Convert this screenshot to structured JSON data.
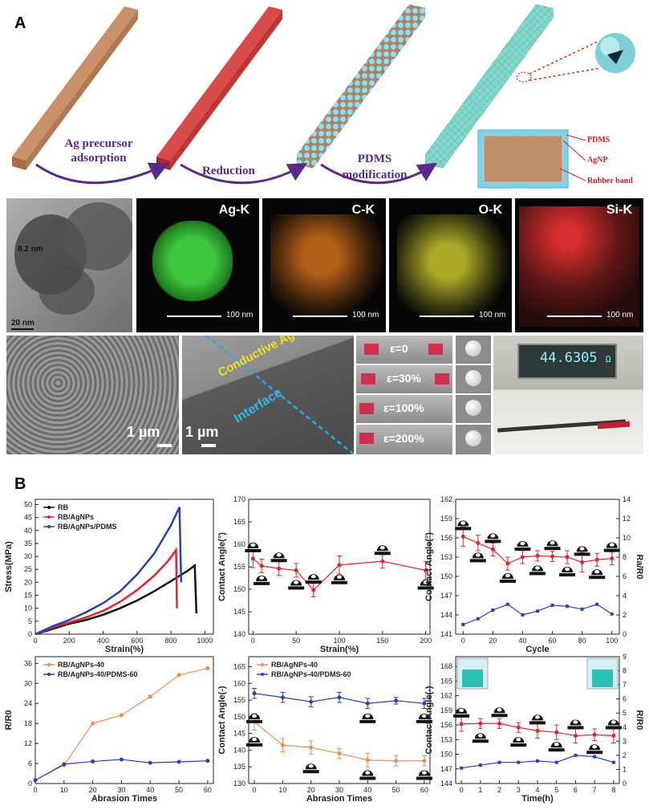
{
  "panel_a": {
    "letter": "A",
    "steps": [
      "Ag precursor adsorption",
      "Reduction",
      "PDMS modification"
    ],
    "layers": [
      "PDMS",
      "AgNP",
      "Rubber band"
    ],
    "tem": {
      "thickness": "8.2 nm",
      "scale": "20 nm"
    },
    "eds": [
      {
        "label": "Ag-K",
        "scale": "100 nm",
        "color": "#3ec43e"
      },
      {
        "label": "C-K",
        "scale": "100 nm",
        "color": "#e0761c"
      },
      {
        "label": "O-K",
        "scale": "100 nm",
        "color": "#d7d430"
      },
      {
        "label": "Si-K",
        "scale": "100 nm",
        "color": "#e23030"
      }
    ],
    "sem": {
      "scale1": "1 µm",
      "scale2": "1 µm",
      "shell": "Conductive Ag Shell",
      "interface": "Interface"
    },
    "strain_labels": [
      "ε=0",
      "ε=30%",
      "ε=100%",
      "ε=200%"
    ],
    "meter": {
      "value": "44.6305",
      "unit": "Ω"
    }
  },
  "panel_b": {
    "letter": "B"
  },
  "chart_data": [
    {
      "type": "line",
      "xlabel": "Strain(%)",
      "ylabel": "Stress(MPa)",
      "xlim": [
        0,
        1050
      ],
      "ylim": [
        0,
        52
      ],
      "xticks": [
        0,
        200,
        400,
        600,
        800,
        1000
      ],
      "yticks": [
        0,
        5,
        10,
        15,
        20,
        25,
        30,
        35,
        40,
        45,
        50
      ],
      "series": [
        {
          "name": "RB",
          "color": "#111111",
          "x": [
            0,
            100,
            200,
            300,
            400,
            500,
            600,
            700,
            800,
            900,
            940,
            950
          ],
          "y": [
            0,
            2,
            4,
            5.5,
            7.5,
            10,
            13,
            16.5,
            20.5,
            24.5,
            26.5,
            8
          ]
        },
        {
          "name": "RB/AgNPs",
          "color": "#e8222a",
          "x": [
            0,
            100,
            200,
            300,
            400,
            500,
            600,
            700,
            780,
            830,
            835
          ],
          "y": [
            0,
            2.5,
            4.5,
            6.5,
            9,
            12.5,
            17,
            22.5,
            28,
            32.5,
            10
          ]
        },
        {
          "name": "RB/AgNPs/PDMS",
          "color": "#2a3fb8",
          "x": [
            0,
            100,
            200,
            300,
            400,
            500,
            600,
            700,
            800,
            850,
            860
          ],
          "y": [
            0,
            3,
            5.5,
            8.5,
            12,
            16.5,
            23,
            31,
            42,
            49,
            20
          ]
        }
      ]
    },
    {
      "type": "line",
      "xlabel": "Strain(%)",
      "ylabel": "Contact Angle(°)",
      "xlim": [
        -5,
        205
      ],
      "ylim": [
        140,
        170
      ],
      "xticks": [
        0,
        50,
        100,
        150,
        200
      ],
      "yticks": [
        140,
        145,
        150,
        155,
        160,
        165,
        170
      ],
      "series": [
        {
          "color": "#e8222a",
          "x": [
            0,
            10,
            30,
            50,
            70,
            100,
            150,
            200
          ],
          "y": [
            156.8,
            155.2,
            154.6,
            154.2,
            149.8,
            155.4,
            156.2,
            154.2
          ],
          "err": [
            2,
            1.5,
            1.5,
            1.5,
            1.5,
            2,
            1.5,
            2
          ]
        }
      ]
    },
    {
      "type": "line",
      "xlabel": "Cycle",
      "ylabel": "Contact Angle(°)",
      "ylabel2": "Ra/R0",
      "xlim": [
        -5,
        105
      ],
      "ylim": [
        141,
        162
      ],
      "y2lim": [
        0,
        14
      ],
      "xticks": [
        0,
        20,
        40,
        60,
        80,
        100
      ],
      "yticks": [
        141,
        144,
        147,
        150,
        153,
        156,
        159,
        162
      ],
      "y2ticks": [
        0,
        2,
        4,
        6,
        8,
        10,
        12,
        14
      ],
      "series": [
        {
          "color": "#e8222a",
          "axis": "left",
          "x": [
            0,
            10,
            20,
            30,
            40,
            50,
            60,
            70,
            80,
            90,
            100
          ],
          "y": [
            156.2,
            155.2,
            154.2,
            152,
            153,
            153.2,
            153.1,
            153,
            152.2,
            152.6,
            152.8
          ],
          "err": [
            1.5,
            1.2,
            1,
            1,
            1,
            0.8,
            0.8,
            1,
            1.5,
            1,
            1
          ]
        },
        {
          "color": "#2a3fb8",
          "axis": "right",
          "x": [
            0,
            10,
            20,
            30,
            40,
            50,
            60,
            70,
            80,
            90,
            100
          ],
          "y": [
            1,
            1.6,
            2.5,
            3.1,
            2,
            2.4,
            3,
            2.9,
            2.6,
            3.1,
            2.1
          ]
        }
      ]
    },
    {
      "type": "line",
      "xlabel": "Abrasion Times",
      "ylabel": "R/R0",
      "xlim": [
        0,
        62
      ],
      "ylim": [
        0,
        38
      ],
      "xticks": [
        0,
        10,
        20,
        30,
        40,
        50,
        60
      ],
      "yticks": [
        0,
        6,
        12,
        18,
        24,
        30,
        36
      ],
      "series": [
        {
          "name": "RB/AgNPs-40",
          "color": "#f28a4a",
          "x": [
            0,
            10,
            20,
            30,
            40,
            50,
            60
          ],
          "y": [
            1,
            5.5,
            18,
            20.5,
            26,
            32.5,
            34.5
          ]
        },
        {
          "name": "RB/AgNPs-40/PDMS-60",
          "color": "#2a3fb8",
          "x": [
            0,
            10,
            20,
            30,
            40,
            50,
            60
          ],
          "y": [
            1,
            5.8,
            6.6,
            7.2,
            6.2,
            6.5,
            6.8
          ]
        }
      ]
    },
    {
      "type": "line",
      "xlabel": "Abrasion Times",
      "ylabel": "Contact Angle(-)",
      "xlim": [
        -2,
        62
      ],
      "ylim": [
        130,
        168
      ],
      "xticks": [
        0,
        10,
        20,
        30,
        40,
        50,
        60
      ],
      "yticks": [
        130,
        135,
        140,
        145,
        150,
        155,
        160,
        165
      ],
      "series": [
        {
          "name": "RB/AgNPs-40",
          "color": "#f28a4a",
          "x": [
            0,
            10,
            20,
            30,
            40,
            50,
            60
          ],
          "y": [
            148.5,
            141.5,
            140.8,
            139,
            137,
            136.8,
            136.8
          ],
          "err": [
            2.5,
            2,
            2,
            1.5,
            2,
            1.5,
            1.5
          ]
        },
        {
          "name": "RB/AgNPs-40/PDMS-60",
          "color": "#2a3fb8",
          "x": [
            0,
            10,
            20,
            30,
            40,
            50,
            60
          ],
          "y": [
            157,
            155.8,
            154.5,
            155.8,
            154,
            154.8,
            154
          ],
          "err": [
            1.5,
            1.5,
            1.5,
            1.5,
            1.5,
            1,
            1.5
          ]
        }
      ]
    },
    {
      "type": "line",
      "xlabel": "Time(h)",
      "ylabel": "Contact Angle(-)",
      "ylabel2": "R/R0",
      "xlim": [
        -0.3,
        8.3
      ],
      "ylim": [
        144,
        170
      ],
      "y2lim": [
        0,
        9
      ],
      "xticks": [
        0,
        1,
        2,
        3,
        4,
        5,
        6,
        7,
        8
      ],
      "yticks": [
        144,
        147,
        150,
        153,
        156,
        159,
        162,
        165,
        168
      ],
      "y2ticks": [
        0,
        1,
        2,
        3,
        4,
        5,
        6,
        7,
        8,
        9
      ],
      "series": [
        {
          "color": "#e8222a",
          "axis": "left",
          "x": [
            0,
            1,
            2,
            3,
            4,
            5,
            6,
            7,
            8
          ],
          "y": [
            156.2,
            156.3,
            156.3,
            155.5,
            154.8,
            154.5,
            153.8,
            154,
            153.8
          ],
          "err": [
            1.5,
            1,
            1,
            1,
            1.5,
            1.5,
            1.5,
            1.2,
            1.5
          ]
        },
        {
          "color": "#2a3fb8",
          "axis": "right",
          "x": [
            0,
            1,
            2,
            3,
            4,
            5,
            6,
            7,
            8
          ],
          "y": [
            1.1,
            1.3,
            1.5,
            1.5,
            1.6,
            1.5,
            2,
            1.9,
            1.5
          ]
        }
      ]
    }
  ]
}
